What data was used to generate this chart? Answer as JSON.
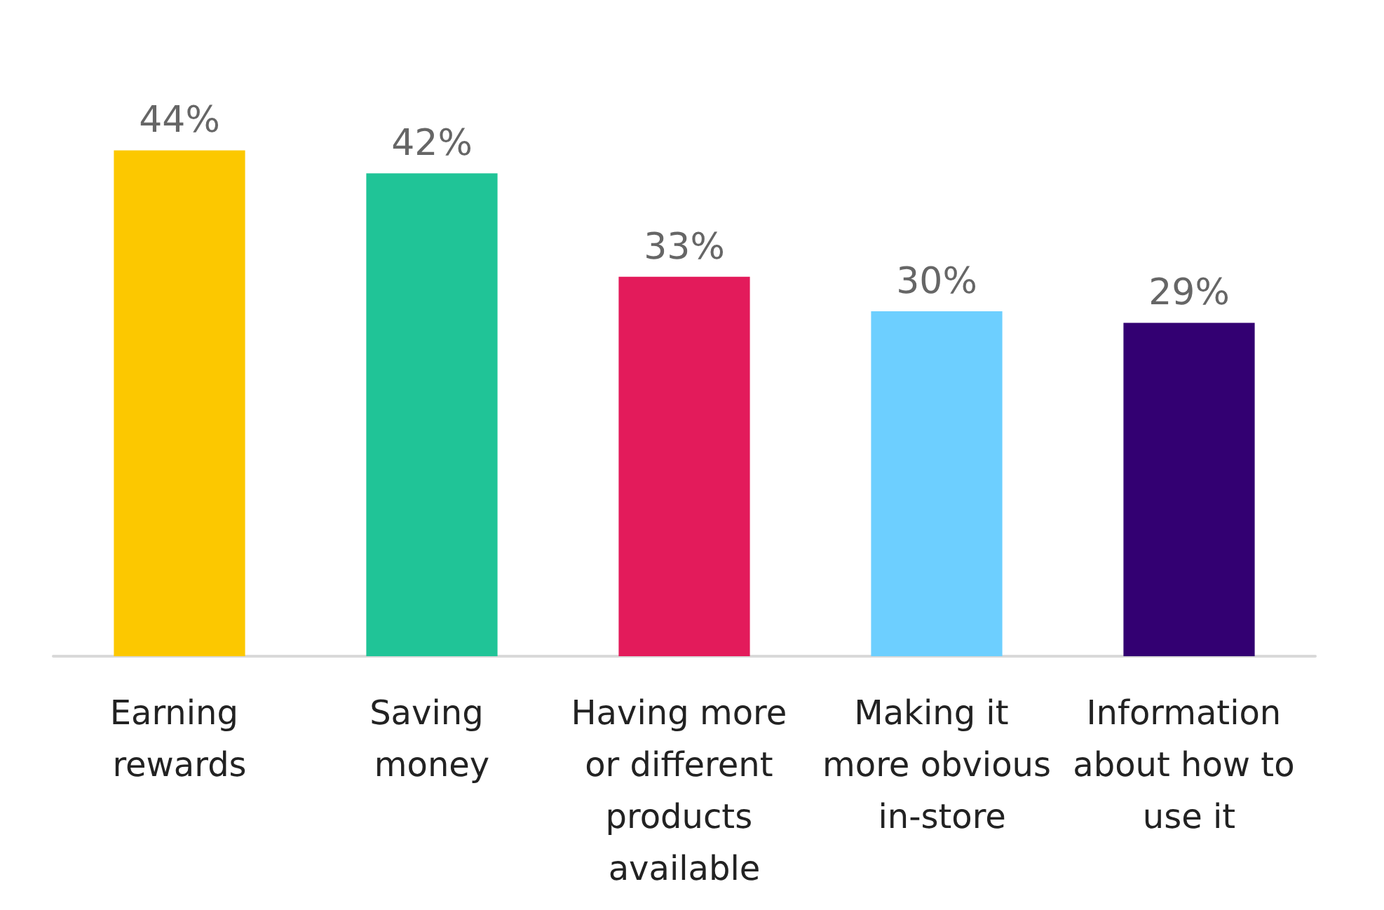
{
  "chart_data": {
    "type": "bar",
    "categories": [
      "Earning rewards",
      "Saving money",
      "Having more or different products available",
      "Making it more obvious in-store",
      "Information about how to use it"
    ],
    "values": [
      44,
      42,
      33,
      30,
      29
    ],
    "colors": [
      "#fcc800",
      "#20c497",
      "#e31b5b",
      "#6dcfff",
      "#330072"
    ],
    "value_labels": [
      "44%",
      "42%",
      "33%",
      "30%",
      "29%"
    ]
  }
}
